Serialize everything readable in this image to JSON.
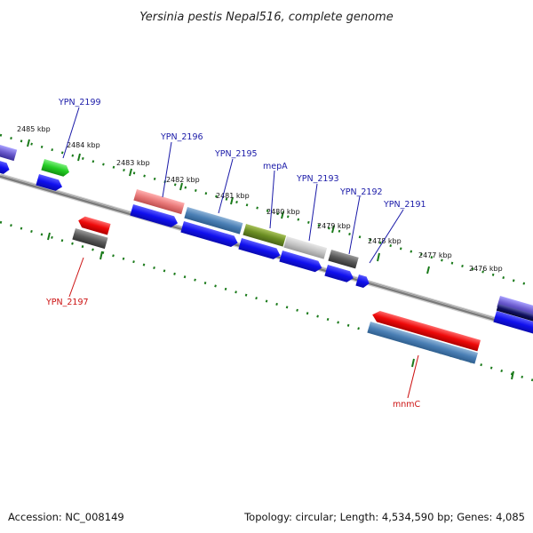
{
  "title": "Yersinia pestis Nepal516, complete genome",
  "footer": {
    "accession": "Accession: NC_008149",
    "topology": "Topology: circular; Length: 4,534,590 bp; Genes: 4,085"
  },
  "tick_labels": [
    "2485 kbp",
    "2484 kbp",
    "2483 kbp",
    "2482 kbp",
    "2481 kbp",
    "2480 kbp",
    "2479 kbp",
    "2478 kbp",
    "2477 kbp",
    "2476 kbp"
  ],
  "gene_labels": {
    "ypn_2199": "YPN_2199",
    "ypn_2196": "YPN_2196",
    "ypn_2195": "YPN_2195",
    "mepa": "mepA",
    "ypn_2193": "YPN_2193",
    "ypn_2192": "YPN_2192",
    "ypn_2191": "YPN_2191",
    "ypn_2197": "YPN_2197",
    "mnmc": "mnmC"
  },
  "colors": {
    "forward_label": "#1a1aa8",
    "reverse_label": "#cc1111",
    "tick": "#1a7a1a",
    "backbone": "#7a7a7a"
  }
}
